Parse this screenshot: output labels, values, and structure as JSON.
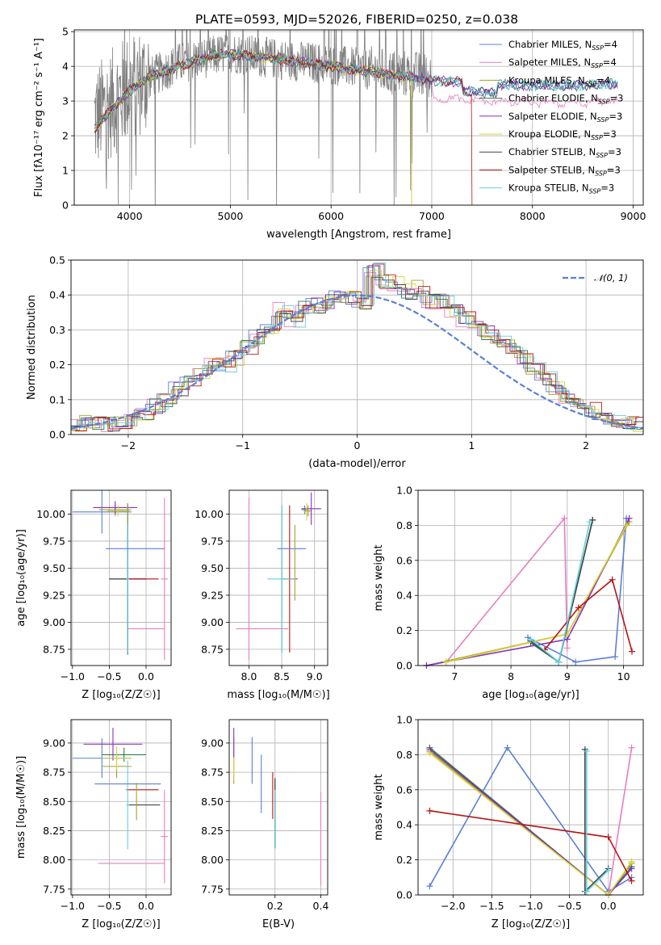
{
  "figure": {
    "title": "PLATE=0593, MJD=52026, FIBERID=0250, z=0.038"
  },
  "models": [
    {
      "name": "Chabrier MILES",
      "nssp": "4",
      "color": "#5b7fd6"
    },
    {
      "name": "Salpeter MILES",
      "nssp": "4",
      "color": "#e77fbf"
    },
    {
      "name": "Kroupa MILES",
      "nssp": "4",
      "color": "#9ea32d"
    },
    {
      "name": "Chabrier ELODIE",
      "nssp": "3",
      "color": "#2e7d4f"
    },
    {
      "name": "Salpeter ELODIE",
      "nssp": "3",
      "color": "#8a2fbf"
    },
    {
      "name": "Kroupa ELODIE",
      "nssp": "3",
      "color": "#d8d432"
    },
    {
      "name": "Chabrier STELIB",
      "nssp": "3",
      "color": "#444444"
    },
    {
      "name": "Salpeter STELIB",
      "nssp": "3",
      "color": "#b81414"
    },
    {
      "name": "Kroupa STELIB",
      "nssp": "3",
      "color": "#64d0e0"
    }
  ],
  "chart_data": [
    {
      "id": "spectrum",
      "type": "line",
      "title": "PLATE=0593, MJD=52026, FIBERID=0250, z=0.038",
      "xlabel": "wavelength [Angstrom, rest frame]",
      "ylabel": "Flux [fλ10⁻¹⁷ erg cm⁻² s⁻¹ A⁻¹]",
      "xlim": [
        3450,
        9100
      ],
      "ylim": [
        0,
        5.05
      ],
      "xticks": [
        "4000",
        "5000",
        "6000",
        "7000",
        "8000",
        "9000"
      ],
      "yticks": [
        "0",
        "1",
        "2",
        "3",
        "4",
        "5"
      ],
      "legend": "top-right",
      "data_color": "#808080",
      "model_continuum": [
        [
          3650,
          2.2
        ],
        [
          3800,
          2.7
        ],
        [
          4000,
          3.3
        ],
        [
          4200,
          3.7
        ],
        [
          4500,
          4.0
        ],
        [
          4800,
          4.3
        ],
        [
          5000,
          4.35
        ],
        [
          5500,
          4.2
        ],
        [
          6000,
          4.0
        ],
        [
          6500,
          3.8
        ],
        [
          7000,
          3.6
        ],
        [
          7500,
          3.5
        ],
        [
          8000,
          3.45
        ],
        [
          8500,
          3.45
        ],
        [
          8800,
          3.5
        ]
      ],
      "observed_continuum": [
        [
          3650,
          2.5
        ],
        [
          4000,
          3.4
        ],
        [
          4500,
          4.1
        ],
        [
          5000,
          4.4
        ],
        [
          5500,
          4.2
        ],
        [
          6000,
          4.05
        ],
        [
          6500,
          3.85
        ],
        [
          7000,
          3.7
        ]
      ]
    },
    {
      "id": "residual-hist",
      "type": "bar",
      "xlabel": "(data-model)/error",
      "ylabel": "Normed distribution",
      "xlim": [
        -2.5,
        2.5
      ],
      "ylim": [
        0,
        0.5
      ],
      "xticks": [
        "−2",
        "−1",
        "0",
        "1",
        "2"
      ],
      "yticks": [
        "0.0",
        "0.1",
        "0.2",
        "0.3",
        "0.4",
        "0.5"
      ],
      "legend": "top-right",
      "legend_label": "𝒩(0, 1)",
      "gauss_color": "#5b7fd6",
      "bin_width": 0.1,
      "hist_values": [
        0.03,
        0.035,
        0.032,
        0.03,
        0.035,
        0.04,
        0.06,
        0.08,
        0.1,
        0.13,
        0.16,
        0.18,
        0.2,
        0.2,
        0.22,
        0.25,
        0.28,
        0.31,
        0.36,
        0.33,
        0.36,
        0.37,
        0.38,
        0.4,
        0.39,
        0.37,
        0.47,
        0.44,
        0.43,
        0.41,
        0.42,
        0.38,
        0.38,
        0.35,
        0.33,
        0.31,
        0.29,
        0.27,
        0.25,
        0.22,
        0.19,
        0.16,
        0.13,
        0.11,
        0.09,
        0.07,
        0.055,
        0.045,
        0.035,
        0.03
      ]
    },
    {
      "id": "age-Z",
      "type": "scatter",
      "xlabel": "Z [log₁₀(Z/Z☉)]",
      "ylabel": "age  [log₁₀(age/yr)]",
      "xlim": [
        -1.02,
        0.34
      ],
      "ylim": [
        8.6,
        10.22
      ],
      "xticks": [
        "−1.0",
        "−0.5",
        "0.0"
      ],
      "yticks": [
        "8.75",
        "9.00",
        "9.25",
        "9.50",
        "9.75",
        "10.00",
        "10.25"
      ],
      "points": [
        {
          "model": 0,
          "x": -0.6,
          "xerr": 0.4,
          "y": 10.02,
          "yerr": 0.2
        },
        {
          "model": 1,
          "x": 0.25,
          "xerr": 0.05,
          "y": 9.4,
          "yerr": 0.75
        },
        {
          "model": 1,
          "x": 0.0,
          "xerr": 0.25,
          "y": 8.94,
          "yerr": 0.0
        },
        {
          "model": 2,
          "x": -0.42,
          "xerr": 0.22,
          "y": 10.04,
          "yerr": 0.06
        },
        {
          "model": 3,
          "x": -0.25,
          "xerr": 0.25,
          "y": 9.4,
          "yerr": 0.7
        },
        {
          "model": 4,
          "x": -0.42,
          "xerr": 0.3,
          "y": 10.06,
          "yerr": 0.06
        },
        {
          "model": 5,
          "x": -0.38,
          "xerr": 0.15,
          "y": 10.03,
          "yerr": 0.05
        },
        {
          "model": 6,
          "x": -0.25,
          "xerr": 0.25,
          "y": 9.4,
          "yerr": 0.68
        },
        {
          "model": 7,
          "x": -0.05,
          "xerr": 0.22,
          "y": 9.4,
          "yerr": 0.0
        },
        {
          "model": 8,
          "x": -0.25,
          "xerr": 0.02,
          "y": 9.4,
          "yerr": 0.68
        },
        {
          "model": 0,
          "x": -0.15,
          "xerr": 0.4,
          "y": 9.68,
          "yerr": 0.0
        },
        {
          "model": 2,
          "x": -0.25,
          "xerr": 0.0,
          "y": 10.0,
          "yerr": 0.1
        }
      ]
    },
    {
      "id": "age-mass",
      "type": "scatter",
      "xlabel": "mass [log₁₀(M/M☉)]",
      "ylabel": "",
      "xlim": [
        7.7,
        9.2
      ],
      "ylim": [
        8.6,
        10.22
      ],
      "xticks": [
        "8.0",
        "8.5",
        "9.0"
      ],
      "yticks": [
        "8.75",
        "9.00",
        "9.25",
        "9.50",
        "9.75",
        "10.00",
        "10.25"
      ],
      "points": [
        {
          "model": 0,
          "x": 8.85,
          "xerr": 0.05,
          "y": 10.04,
          "yerr": 0.04
        },
        {
          "model": 1,
          "x": 8.0,
          "xerr": 0.0,
          "y": 9.4,
          "yerr": 0.75
        },
        {
          "model": 1,
          "x": 8.2,
          "xerr": 0.4,
          "y": 8.94,
          "yerr": 0.0
        },
        {
          "model": 2,
          "x": 8.9,
          "xerr": 0.05,
          "y": 10.03,
          "yerr": 0.05
        },
        {
          "model": 3,
          "x": 8.5,
          "xerr": 0.0,
          "y": 9.4,
          "yerr": 0.68
        },
        {
          "model": 4,
          "x": 8.95,
          "xerr": 0.15,
          "y": 10.05,
          "yerr": 0.15
        },
        {
          "model": 5,
          "x": 8.88,
          "xerr": 0.05,
          "y": 10.02,
          "yerr": 0.08
        },
        {
          "model": 6,
          "x": 8.5,
          "xerr": 0.0,
          "y": 9.4,
          "yerr": 0.68
        },
        {
          "model": 7,
          "x": 8.62,
          "xerr": 0.12,
          "y": 9.4,
          "yerr": 0.68
        },
        {
          "model": 8,
          "x": 8.5,
          "xerr": 0.22,
          "y": 9.4,
          "yerr": 0.68
        },
        {
          "model": 0,
          "x": 8.65,
          "xerr": 0.22,
          "y": 9.68,
          "yerr": 0.0
        },
        {
          "model": 2,
          "x": 8.7,
          "xerr": 0.0,
          "y": 9.55,
          "yerr": 0.35
        }
      ]
    },
    {
      "id": "massweight-age",
      "type": "line",
      "xlabel": "age  [log₁₀(age/yr)]",
      "ylabel": "mass weight",
      "xlim": [
        6.35,
        10.35
      ],
      "ylim": [
        0,
        1.0
      ],
      "xticks": [
        "7",
        "8",
        "9",
        "10"
      ],
      "yticks": [
        "0.0",
        "0.2",
        "0.4",
        "0.6",
        "0.8",
        "1.0"
      ],
      "series": [
        {
          "model": 0,
          "points": [
            [
              8.3,
              0.16
            ],
            [
              9.15,
              0.02
            ],
            [
              9.85,
              0.05
            ],
            [
              10.05,
              0.84
            ]
          ]
        },
        {
          "model": 1,
          "points": [
            [
              6.85,
              0.02
            ],
            [
              8.95,
              0.84
            ],
            [
              9.0,
              0.1
            ]
          ]
        },
        {
          "model": 2,
          "points": [
            [
              6.5,
              0.0
            ],
            [
              9.0,
              0.18
            ],
            [
              10.1,
              0.82
            ]
          ]
        },
        {
          "model": 3,
          "points": [
            [
              8.35,
              0.13
            ],
            [
              8.85,
              0.02
            ],
            [
              9.45,
              0.83
            ]
          ]
        },
        {
          "model": 4,
          "points": [
            [
              6.5,
              0.0
            ],
            [
              9.0,
              0.15
            ],
            [
              10.1,
              0.84
            ]
          ]
        },
        {
          "model": 5,
          "points": [
            [
              6.85,
              0.02
            ],
            [
              9.0,
              0.18
            ],
            [
              10.05,
              0.8
            ]
          ]
        },
        {
          "model": 6,
          "points": [
            [
              8.35,
              0.14
            ],
            [
              8.85,
              0.02
            ],
            [
              9.45,
              0.83
            ]
          ]
        },
        {
          "model": 7,
          "points": [
            [
              8.6,
              0.09
            ],
            [
              9.2,
              0.33
            ],
            [
              9.8,
              0.49
            ],
            [
              10.15,
              0.08
            ]
          ]
        },
        {
          "model": 8,
          "points": [
            [
              8.35,
              0.15
            ],
            [
              8.85,
              0.02
            ],
            [
              9.4,
              0.82
            ]
          ]
        }
      ]
    },
    {
      "id": "mass-Z",
      "type": "scatter",
      "xlabel": "Z [log₁₀(Z/Z☉)]",
      "ylabel": "mass [log₁₀(M/M☉)]",
      "xlim": [
        -1.02,
        0.34
      ],
      "ylim": [
        7.7,
        9.2
      ],
      "xticks": [
        "−1.0",
        "−0.5",
        "0.0"
      ],
      "yticks": [
        "7.75",
        "8.00",
        "8.25",
        "8.50",
        "8.75",
        "9.00"
      ],
      "points": [
        {
          "model": 0,
          "x": -0.6,
          "xerr": 0.4,
          "y": 8.87,
          "yerr": 0.17
        },
        {
          "model": 1,
          "x": 0.25,
          "xerr": 0.05,
          "y": 8.2,
          "yerr": 0.4
        },
        {
          "model": 1,
          "x": -0.2,
          "xerr": 0.45,
          "y": 7.97,
          "yerr": 0.0
        },
        {
          "model": 2,
          "x": -0.4,
          "xerr": 0.2,
          "y": 8.8,
          "yerr": 0.1
        },
        {
          "model": 3,
          "x": -0.3,
          "xerr": 0.3,
          "y": 8.9,
          "yerr": 0.06
        },
        {
          "model": 4,
          "x": -0.45,
          "xerr": 0.4,
          "y": 8.99,
          "yerr": 0.14
        },
        {
          "model": 5,
          "x": -0.4,
          "xerr": 0.2,
          "y": 8.87,
          "yerr": 0.1
        },
        {
          "model": 6,
          "x": -0.03,
          "xerr": 0.22,
          "y": 8.47,
          "yerr": 0.0
        },
        {
          "model": 7,
          "x": -0.05,
          "xerr": 0.22,
          "y": 8.6,
          "yerr": 0.0
        },
        {
          "model": 8,
          "x": -0.25,
          "xerr": 0.02,
          "y": 8.47,
          "yerr": 0.38
        },
        {
          "model": 0,
          "x": -0.25,
          "xerr": 0.45,
          "y": 8.65,
          "yerr": 0.0
        },
        {
          "model": 2,
          "x": -0.13,
          "xerr": 0.0,
          "y": 8.5,
          "yerr": 0.16
        }
      ]
    },
    {
      "id": "mass-ebv",
      "type": "scatter",
      "xlabel": "E(B-V)",
      "ylabel": "",
      "xlim": [
        0.0,
        0.43
      ],
      "ylim": [
        7.7,
        9.2
      ],
      "xticks": [
        "0.2",
        "0.4"
      ],
      "yticks": [
        "7.75",
        "8.00",
        "8.25",
        "8.50",
        "8.75",
        "9.00"
      ],
      "points": [
        {
          "model": 0,
          "x": 0.1,
          "y": 8.85,
          "yerr": 0.2
        },
        {
          "model": 1,
          "x": 0.4,
          "y": 8.18,
          "yerr": 0.4
        },
        {
          "model": 2,
          "x": 0.02,
          "y": 8.85,
          "yerr": 0.2
        },
        {
          "model": 3,
          "x": 0.2,
          "y": 8.4,
          "yerr": 0.3
        },
        {
          "model": 4,
          "x": 0.02,
          "y": 9.0,
          "yerr": 0.13
        },
        {
          "model": 5,
          "x": 0.02,
          "y": 8.78,
          "yerr": 0.1
        },
        {
          "model": 6,
          "x": 0.2,
          "y": 8.4,
          "yerr": 0.3
        },
        {
          "model": 7,
          "x": 0.19,
          "y": 8.55,
          "yerr": 0.2
        },
        {
          "model": 8,
          "x": 0.2,
          "y": 8.35,
          "yerr": 0.25
        },
        {
          "model": 0,
          "x": 0.14,
          "y": 8.65,
          "yerr": 0.25
        }
      ]
    },
    {
      "id": "massweight-Z",
      "type": "line",
      "xlabel": "Z [log₁₀(Z/Z☉)]",
      "ylabel": "mass weight",
      "xlim": [
        -2.45,
        0.45
      ],
      "ylim": [
        0,
        1.0
      ],
      "xticks": [
        "−2.0",
        "−1.5",
        "−1.0",
        "−0.5",
        "0.0"
      ],
      "yticks": [
        "0.0",
        "0.2",
        "0.4",
        "0.6",
        "0.8",
        "1.0"
      ],
      "series": [
        {
          "model": 0,
          "points": [
            [
              -2.3,
              0.05
            ],
            [
              -1.3,
              0.84
            ],
            [
              0.0,
              0.02
            ],
            [
              0.3,
              0.1
            ]
          ]
        },
        {
          "model": 1,
          "points": [
            [
              0.0,
              0.0
            ],
            [
              0.3,
              0.84
            ]
          ]
        },
        {
          "model": 2,
          "points": [
            [
              -2.3,
              0.82
            ],
            [
              0.0,
              0.0
            ],
            [
              0.3,
              0.18
            ]
          ]
        },
        {
          "model": 3,
          "points": [
            [
              -2.3,
              0.84
            ],
            [
              0.0,
              0.0
            ],
            [
              0.3,
              0.16
            ]
          ]
        },
        {
          "model": 4,
          "points": [
            [
              -2.3,
              0.83
            ],
            [
              0.0,
              0.0
            ],
            [
              0.3,
              0.15
            ]
          ]
        },
        {
          "model": 5,
          "points": [
            [
              -2.3,
              0.81
            ],
            [
              0.0,
              0.0
            ],
            [
              0.3,
              0.19
            ]
          ]
        },
        {
          "model": 6,
          "points": [
            [
              -0.3,
              0.83
            ],
            [
              -0.3,
              0.02
            ],
            [
              0.0,
              0.15
            ]
          ]
        },
        {
          "model": 7,
          "points": [
            [
              -2.3,
              0.48
            ],
            [
              0.0,
              0.33
            ],
            [
              0.3,
              0.08
            ]
          ]
        },
        {
          "model": 8,
          "points": [
            [
              -0.28,
              0.82
            ],
            [
              -0.28,
              0.02
            ],
            [
              0.0,
              0.14
            ]
          ]
        }
      ]
    }
  ]
}
